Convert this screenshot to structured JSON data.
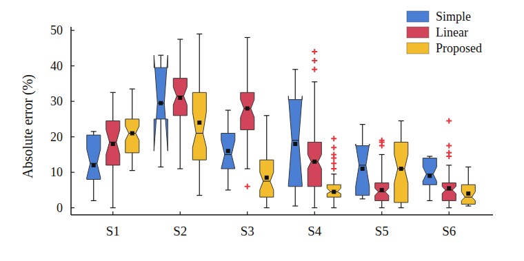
{
  "chart_data": {
    "type": "box",
    "ylabel": "Absolute error (%)",
    "categories": [
      "S1",
      "S2",
      "S3",
      "S4",
      "S5",
      "S6"
    ],
    "ylim": [
      -2,
      51
    ],
    "yticks": [
      0,
      10,
      20,
      30,
      40,
      50
    ],
    "grid": false,
    "legend": "upper-right",
    "series": [
      {
        "name": "Simple",
        "color": "#4a7fd4",
        "boxes": [
          {
            "min": 2,
            "q1": 8,
            "median": 12.5,
            "q3": 20.5,
            "max": 21.5,
            "notch_low": 8.5,
            "notch_high": 16.5,
            "mean": 12,
            "outliers": []
          },
          {
            "min": 11.5,
            "q1": 25,
            "median": 29.5,
            "q3": 39.5,
            "max": 43,
            "notch_low": 16,
            "notch_high": 43,
            "mean": 29.5,
            "outliers": []
          },
          {
            "min": 5,
            "q1": 11,
            "median": 15,
            "q3": 21,
            "max": 27.5,
            "notch_low": 11,
            "notch_high": 19,
            "mean": 16,
            "outliers": []
          },
          {
            "min": 0.5,
            "q1": 6,
            "median": 19,
            "q3": 30.5,
            "max": 39,
            "notch_low": 6.5,
            "notch_high": 31.5,
            "mean": 18,
            "outliers": []
          },
          {
            "min": 2.5,
            "q1": 3.5,
            "median": 12,
            "q3": 17.5,
            "max": 23.5,
            "notch_low": 6,
            "notch_high": 18,
            "mean": 11,
            "outliers": []
          },
          {
            "min": 2,
            "q1": 6.5,
            "median": 9.5,
            "q3": 14,
            "max": 14.5,
            "notch_low": 7.5,
            "notch_high": 11.5,
            "mean": 9,
            "outliers": []
          }
        ]
      },
      {
        "name": "Linear",
        "color": "#d2445a",
        "boxes": [
          {
            "min": 0,
            "q1": 12,
            "median": 18.5,
            "q3": 24.5,
            "max": 32.5,
            "notch_low": 15,
            "notch_high": 22,
            "mean": 18,
            "outliers": []
          },
          {
            "min": 11,
            "q1": 26,
            "median": 31.5,
            "q3": 36.5,
            "max": 47.5,
            "notch_low": 29,
            "notch_high": 34,
            "mean": 31,
            "outliers": []
          },
          {
            "min": 11,
            "q1": 22,
            "median": 28,
            "q3": 32.5,
            "max": 48,
            "notch_low": 25.5,
            "notch_high": 30.5,
            "mean": 28,
            "outliers": [
              6
            ]
          },
          {
            "min": 0,
            "q1": 6,
            "median": 13,
            "q3": 18.5,
            "max": 35.5,
            "notch_low": 11,
            "notch_high": 15,
            "mean": 13,
            "outliers": [
              39,
              41.5,
              44
            ]
          },
          {
            "min": 0,
            "q1": 2,
            "median": 4.5,
            "q3": 7,
            "max": 15,
            "notch_low": 3.5,
            "notch_high": 5.5,
            "mean": 5,
            "outliers": [
              17.5,
              18.5,
              19
            ]
          },
          {
            "min": 0,
            "q1": 2,
            "median": 5,
            "q3": 7,
            "max": 12,
            "notch_low": 4,
            "notch_high": 6,
            "mean": 5.5,
            "outliers": [
              14.5,
              15.5,
              17.5,
              24.5
            ]
          }
        ]
      },
      {
        "name": "Proposed",
        "color": "#f1bc2e",
        "boxes": [
          {
            "min": 10.5,
            "q1": 15.5,
            "median": 21,
            "q3": 25,
            "max": 33.5,
            "notch_low": 19,
            "notch_high": 23,
            "mean": 21,
            "outliers": []
          },
          {
            "min": 3.5,
            "q1": 13.5,
            "median": 21,
            "q3": 32.5,
            "max": 49,
            "notch_low": 17,
            "notch_high": 27,
            "mean": 24,
            "outliers": []
          },
          {
            "min": 0,
            "q1": 3,
            "median": 7.5,
            "q3": 13.5,
            "max": 26,
            "notch_low": 5,
            "notch_high": 10,
            "mean": 8.5,
            "outliers": []
          },
          {
            "min": 0,
            "q1": 3,
            "median": 4.5,
            "q3": 6.5,
            "max": 9.5,
            "notch_low": 4,
            "notch_high": 5.5,
            "mean": 4.5,
            "outliers": [
              11,
              12.5,
              14,
              15,
              17,
              19.5
            ]
          },
          {
            "min": 0,
            "q1": 1.5,
            "median": 11,
            "q3": 18.5,
            "max": 24.5,
            "notch_low": 7,
            "notch_high": 15,
            "mean": 11,
            "outliers": []
          },
          {
            "min": 0.5,
            "q1": 1,
            "median": 3,
            "q3": 6.5,
            "max": 11.5,
            "notch_low": 2,
            "notch_high": 4.5,
            "mean": 4,
            "outliers": []
          }
        ]
      }
    ]
  }
}
